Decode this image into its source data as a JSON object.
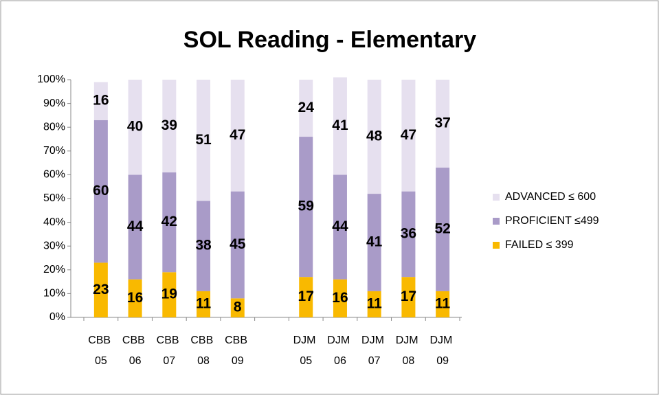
{
  "chart_data": {
    "type": "stacked_bar",
    "title": "SOL Reading - Elementary",
    "categories": [
      "CBB 05",
      "CBB 06",
      "CBB 07",
      "CBB 08",
      "CBB 09",
      null,
      "DJM 05",
      "DJM 06",
      "DJM 07",
      "DJM 08",
      "DJM 09"
    ],
    "series": [
      {
        "name": "FAILED ≤ 399",
        "color": "#f9b900",
        "values": [
          23,
          16,
          19,
          11,
          8,
          null,
          17,
          16,
          11,
          17,
          11
        ]
      },
      {
        "name": "PROFICIENT ≤499",
        "color": "#a99bc8",
        "values": [
          60,
          44,
          42,
          38,
          45,
          null,
          59,
          44,
          41,
          36,
          52
        ]
      },
      {
        "name": "ADVANCED ≤ 600",
        "color": "#e6e0ef",
        "values": [
          16,
          40,
          39,
          51,
          47,
          null,
          24,
          41,
          48,
          47,
          37
        ]
      }
    ],
    "ylim": [
      0,
      100
    ],
    "yticks": [
      {
        "value": 0,
        "label": "0%"
      },
      {
        "value": 10,
        "label": "10%"
      },
      {
        "value": 20,
        "label": "20%"
      },
      {
        "value": 30,
        "label": "30%"
      },
      {
        "value": 40,
        "label": "40%"
      },
      {
        "value": 50,
        "label": "50%"
      },
      {
        "value": 60,
        "label": "60%"
      },
      {
        "value": 70,
        "label": "70%"
      },
      {
        "value": 80,
        "label": "80%"
      },
      {
        "value": 90,
        "label": "90%"
      },
      {
        "value": 100,
        "label": "100%"
      }
    ],
    "legend": "right",
    "grid": false
  }
}
